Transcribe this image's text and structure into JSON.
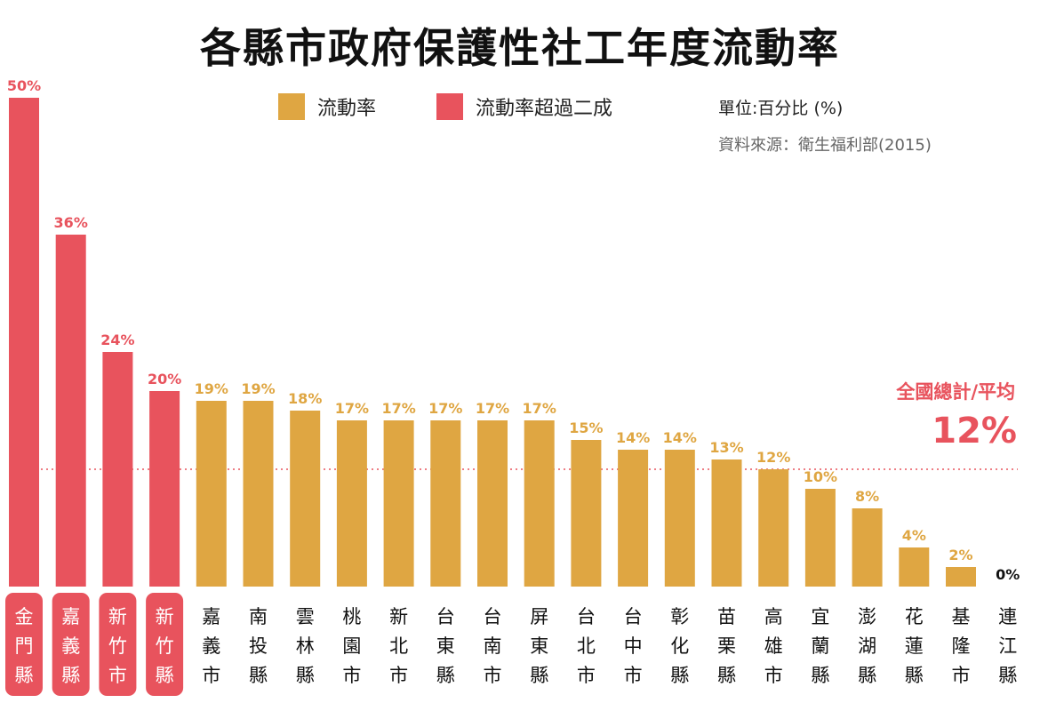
{
  "title": "各縣市政府保護性社工年度流動率",
  "legend": {
    "normal_label": "流動率",
    "high_label": "流動率超過二成"
  },
  "unit": "單位:百分比 (%)",
  "source": "資料來源：衛生福利部(2015)",
  "average": {
    "label": "全國總計/平均",
    "value_text": "12%",
    "value": 12
  },
  "colors": {
    "normal": "#dfa642",
    "high": "#e8535d",
    "average_line": "#e8535d",
    "zero_label": "#111111"
  },
  "chart_data": {
    "type": "bar",
    "title": "各縣市政府保護性社工年度流動率",
    "categories": [
      "金門縣",
      "嘉義縣",
      "新竹市",
      "新竹縣",
      "嘉義市",
      "南投縣",
      "雲林縣",
      "桃園市",
      "新北市",
      "台東縣",
      "台南市",
      "屏東縣",
      "台北市",
      "台中市",
      "彰化縣",
      "苗栗縣",
      "高雄市",
      "宜蘭縣",
      "澎湖縣",
      "花蓮縣",
      "基隆市",
      "連江縣"
    ],
    "values": [
      50,
      36,
      24,
      20,
      19,
      19,
      18,
      17,
      17,
      17,
      17,
      17,
      15,
      14,
      14,
      13,
      12,
      10,
      8,
      4,
      2,
      0
    ],
    "labels": [
      "50%",
      "36%",
      "24%",
      "20%",
      "19%",
      "19%",
      "18%",
      "17%",
      "17%",
      "17%",
      "17%",
      "17%",
      "15%",
      "14%",
      "14%",
      "13%",
      "12%",
      "10%",
      "8%",
      "4%",
      "2%",
      "0%"
    ],
    "highlight_threshold": 20,
    "reference_line": 12,
    "ylim": [
      0,
      50
    ],
    "xlabel": "",
    "ylabel": "",
    "grid": false
  }
}
